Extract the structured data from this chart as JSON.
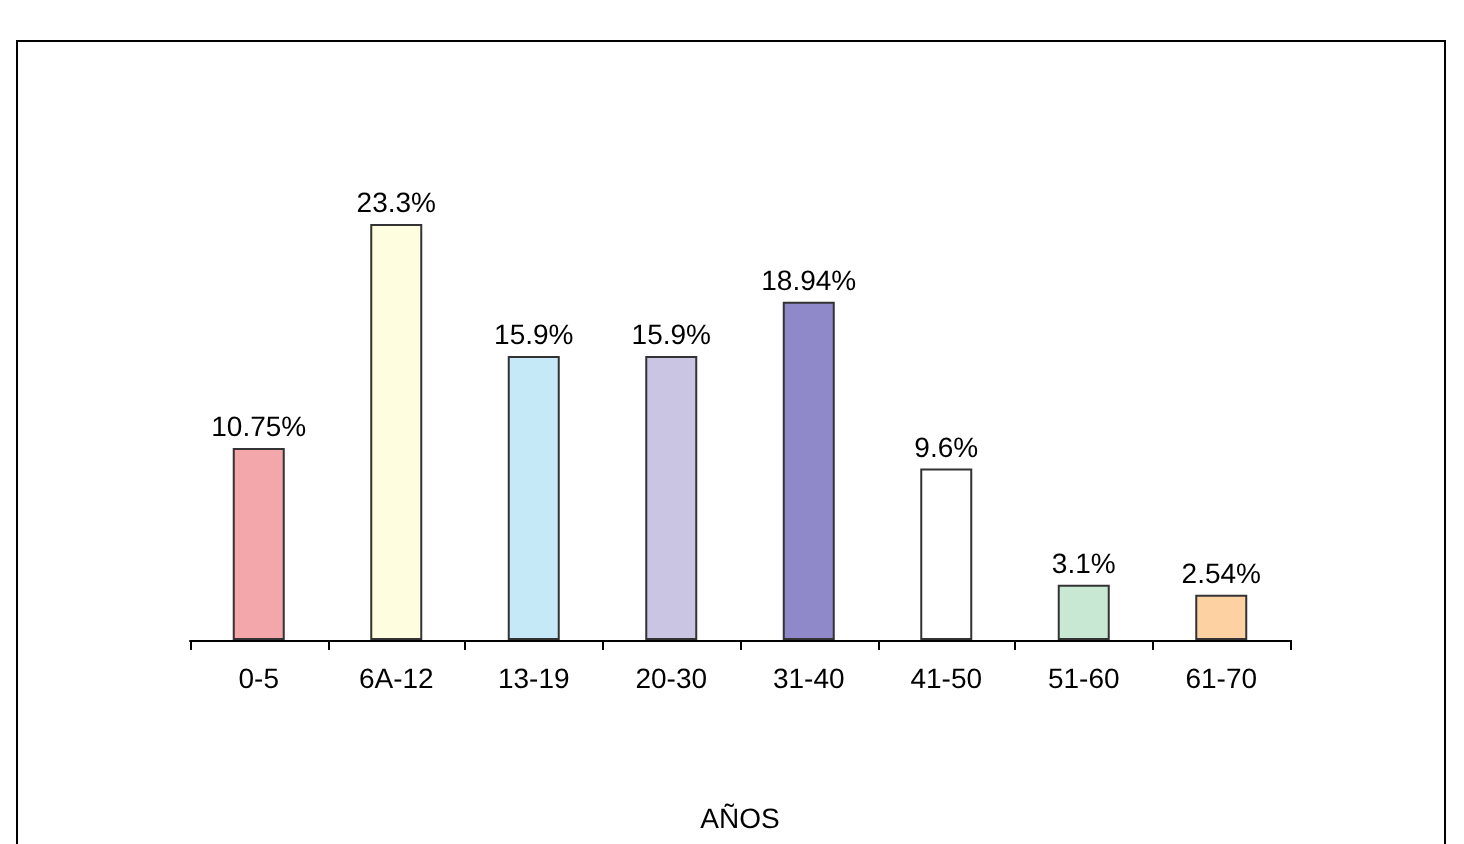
{
  "chart_data": {
    "type": "bar",
    "xlabel": "AÑOS",
    "categories": [
      "0-5",
      "6A-12",
      "13-19",
      "20-30",
      "31-40",
      "41-50",
      "51-60",
      "61-70"
    ],
    "values": [
      10.75,
      23.3,
      15.9,
      15.9,
      18.94,
      9.6,
      3.1,
      2.54
    ],
    "value_labels": [
      "10.75%",
      "23.3%",
      "15.9%",
      "15.9%",
      "18.94%",
      "9.6%",
      "3.1%",
      "2.54%"
    ],
    "colors": [
      "#f4a7ab",
      "#fffde0",
      "#c6e9f8",
      "#c9c5e2",
      "#8f88c9",
      "#ffffff",
      "#c9e8d3",
      "#fdd1a2"
    ]
  }
}
